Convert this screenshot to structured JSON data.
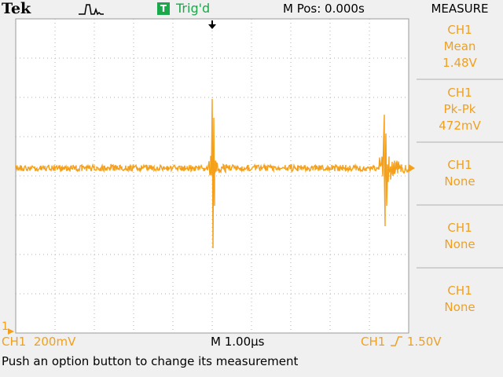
{
  "header": {
    "brand": "Tek",
    "acquire_icon": "acquire-pulse-icon",
    "trigger_badge": "T",
    "trigger_status": "Trig'd",
    "horizontal_position": "M Pos: 0.000s",
    "menu_title": "MEASURE"
  },
  "measurements": [
    {
      "channel": "CH1",
      "type": "Mean",
      "value": "1.48V"
    },
    {
      "channel": "CH1",
      "type": "Pk-Pk",
      "value": "472mV"
    },
    {
      "channel": "CH1",
      "type": "None",
      "value": ""
    },
    {
      "channel": "CH1",
      "type": "None",
      "value": ""
    },
    {
      "channel": "CH1",
      "type": "None",
      "value": ""
    }
  ],
  "footer": {
    "ch1_marker": "1",
    "ch1_scale": "CH1  200mV",
    "time_scale": "M 1.00µs",
    "trigger_channel": "CH1",
    "trigger_slope_icon": "rising-edge-icon",
    "trigger_level": "1.50V",
    "status_message": "Push an option button to change its measurement"
  },
  "colors": {
    "trace": "#f5a01a",
    "grid": "#b0b0b0",
    "trigger_green": "#1aa84a"
  }
}
